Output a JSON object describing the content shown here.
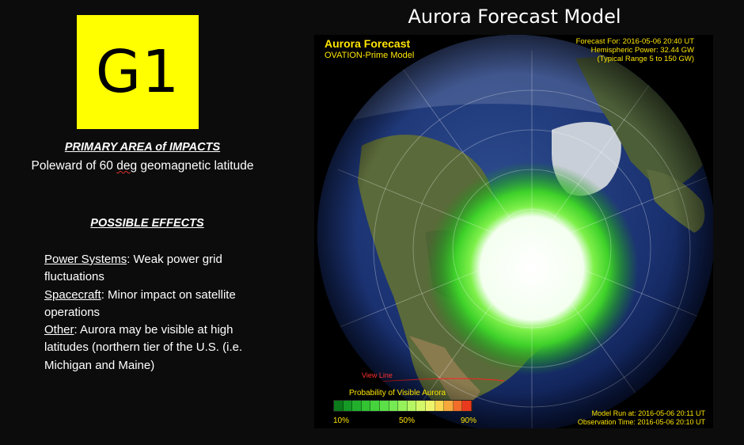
{
  "g_scale": {
    "label": "G1",
    "bg_color": "#ffff00"
  },
  "impacts": {
    "heading": "PRIMARY AREA of IMPACTS",
    "text_before": "Poleward of 60 ",
    "text_deg": "deg",
    "text_after": " geomagnetic latitude"
  },
  "effects": {
    "heading": "POSSIBLE EFFECTS",
    "power_label": "Power Systems",
    "power_text": ": Weak power grid fluctuations",
    "spacecraft_label": "Spacecraft",
    "spacecraft_text": ": Minor impact on satellite operations",
    "other_label": "Other",
    "other_text": ": Aurora may be visible at high latitudes (northern tier of the U.S. (i.e. Michigan and Maine)"
  },
  "model": {
    "title": "Aurora Forecast Model",
    "forecast_title": "Aurora Forecast",
    "forecast_subtitle": "OVATION-Prime Model",
    "forecast_for": "Forecast For: 2016-05-06 20:40 UT",
    "hemispheric_power": "Hemispheric Power: 32.44 GW",
    "typical_range": "(Typical Range 5 to 150 GW)",
    "view_line": "View Line",
    "probability_label": "Probability of Visible Aurora",
    "tick_10": "10%",
    "tick_50": "50%",
    "tick_90": "90%",
    "model_run": "Model Run at: 2016-05-06 20:11 UT",
    "observation_time": "Observation Time: 2016-05-06 20:10 UT",
    "label_color": "#ffe600",
    "colorbar_colors": [
      "#0a7a1a",
      "#159a25",
      "#22b02c",
      "#33c333",
      "#45d23c",
      "#5be048",
      "#76ea52",
      "#96f25a",
      "#b6f662",
      "#d4f868",
      "#eef46a",
      "#f8d650",
      "#f6a83c",
      "#f26c2a",
      "#ea3a1e"
    ]
  }
}
